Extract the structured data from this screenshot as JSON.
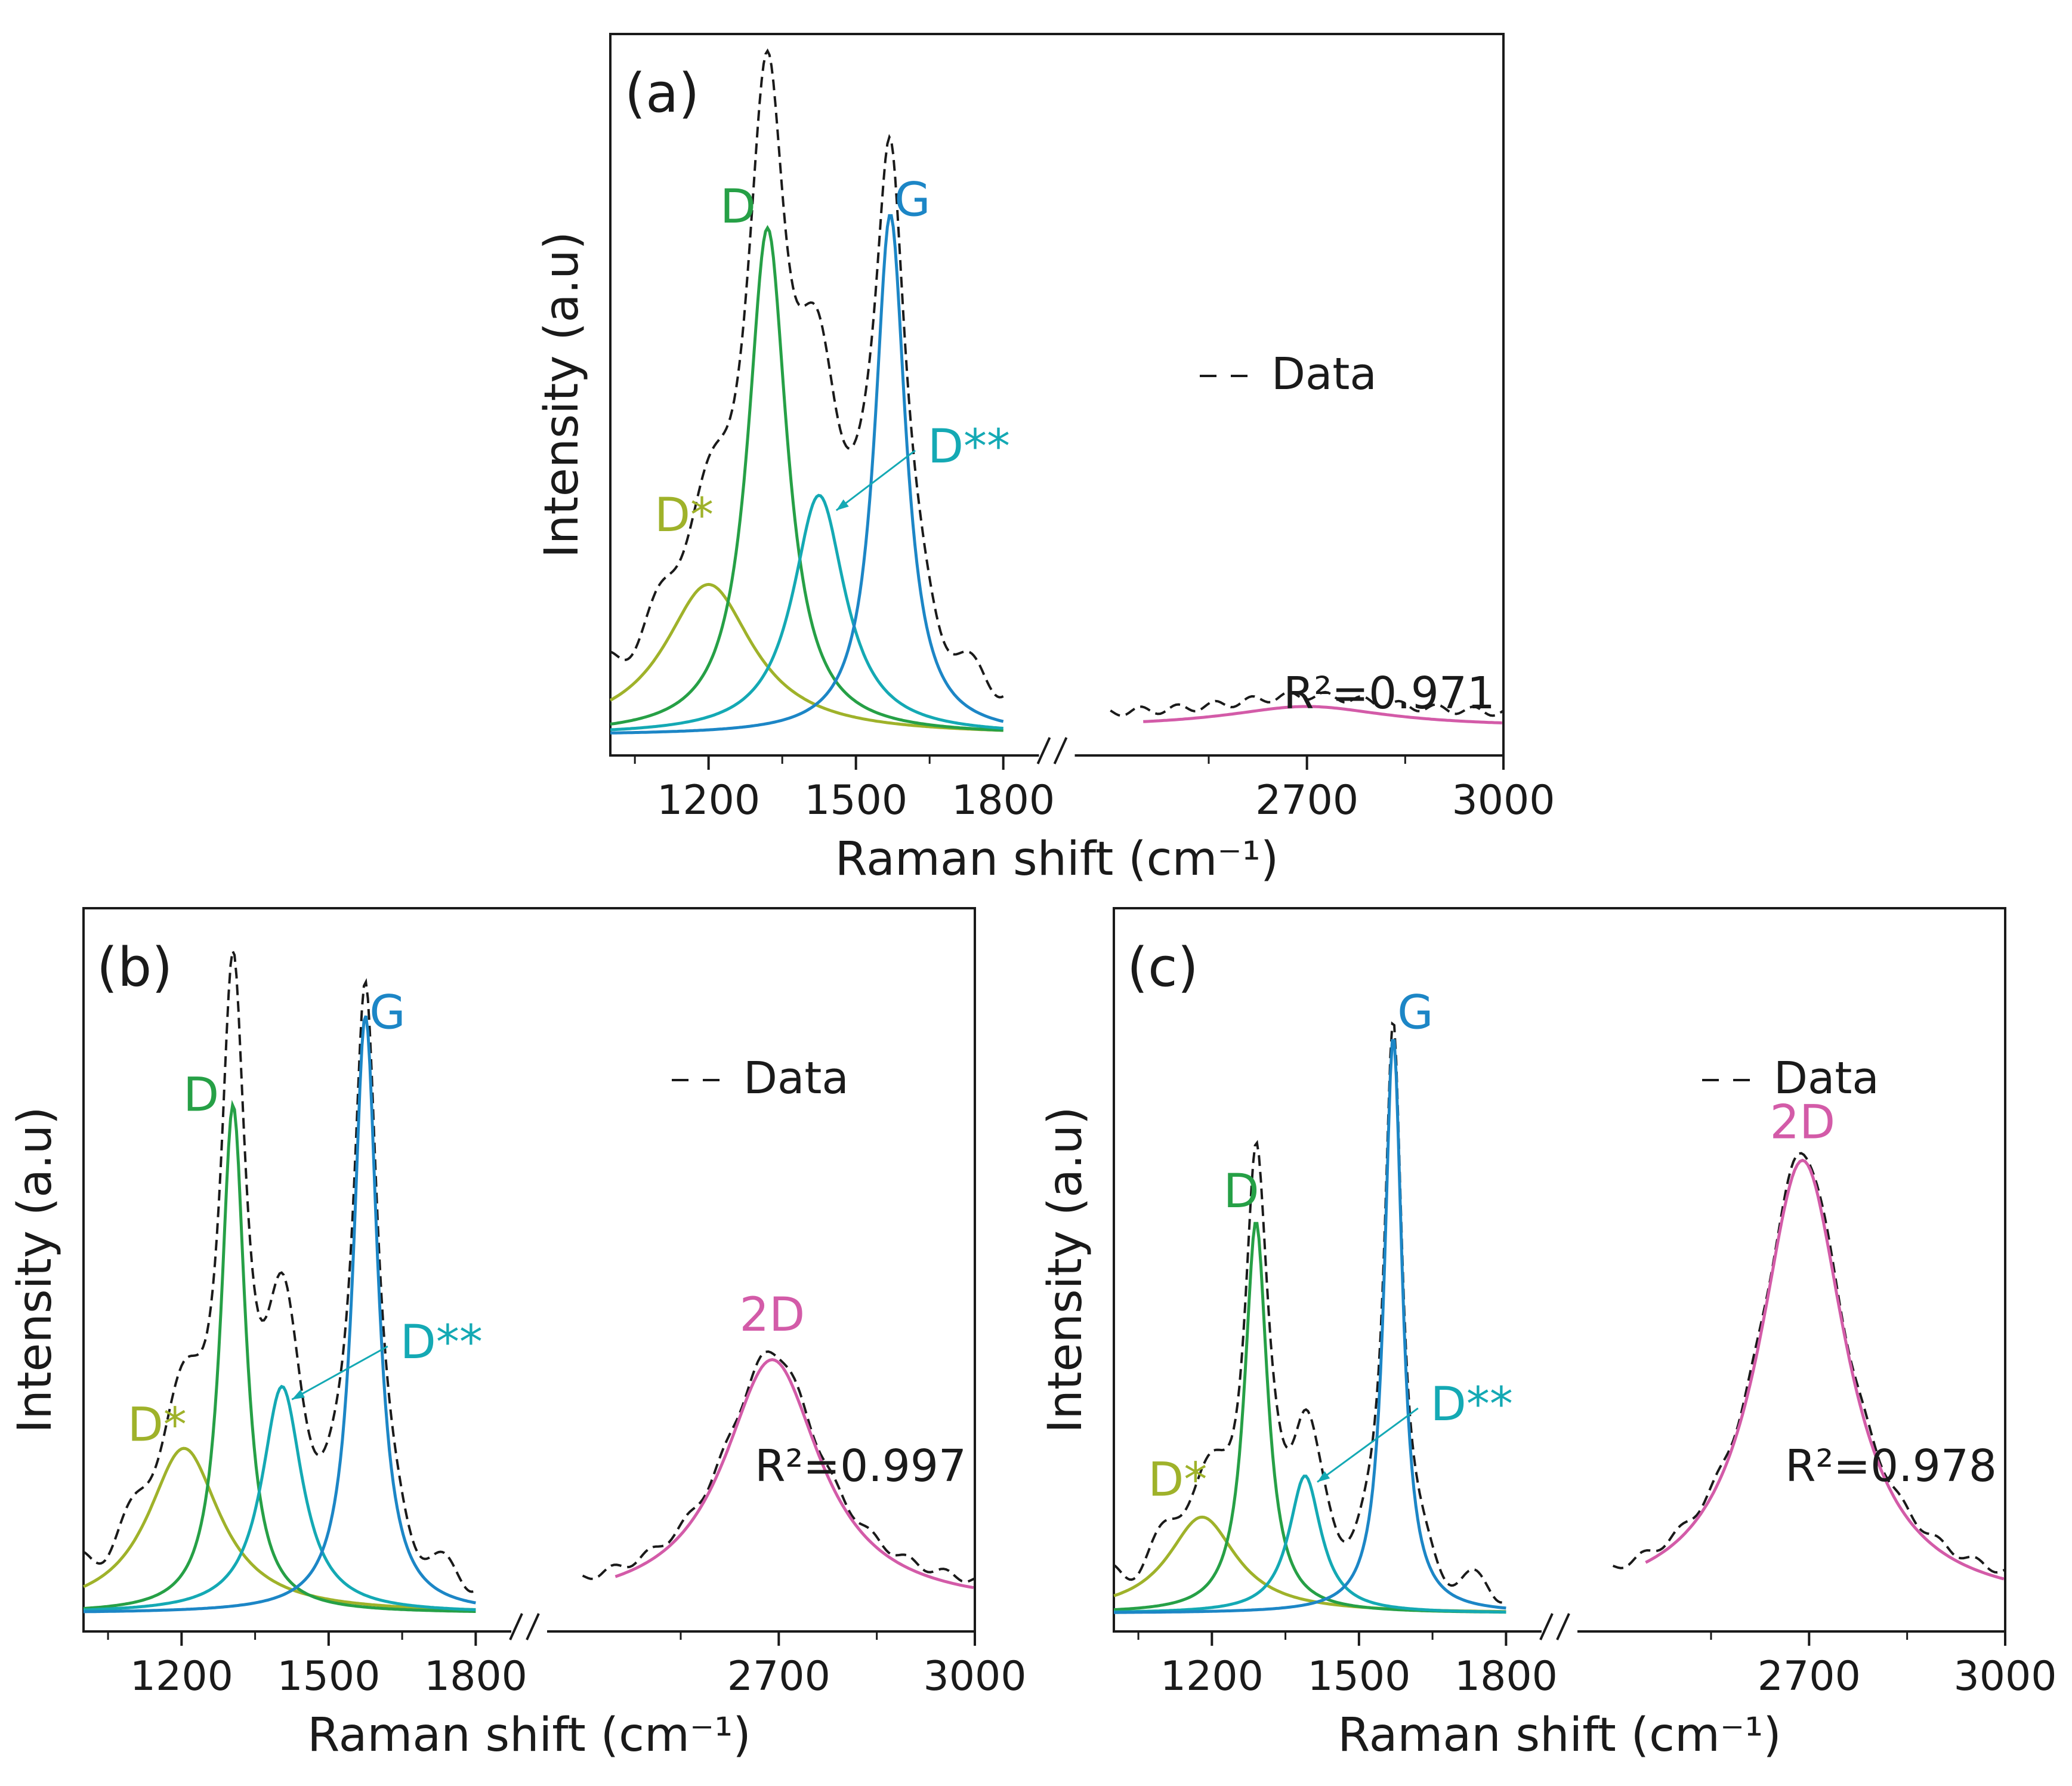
{
  "figure": {
    "x_axis_label": "Raman shift (cm⁻¹)",
    "y_axis_label": "Intensity (a.u)",
    "legend_label": "Data",
    "colors": {
      "data": "#1a1a1a",
      "D*": "#9fb22a",
      "D": "#26a046",
      "D**": "#14a9b4",
      "G": "#1c86c6",
      "2D": "#d35ba8",
      "axis": "#1a1a1a"
    }
  },
  "chart_data": [
    {
      "type": "line",
      "panel": "(a)",
      "r_squared": "R²=0.971",
      "x_break": [
        1800,
        2400
      ],
      "x_ticks": [
        "1200",
        "1500",
        "1800",
        "2700",
        "3000"
      ],
      "peaks": [
        {
          "name": "D*",
          "center": 1200,
          "height": 0.22,
          "width": 110
        },
        {
          "name": "D",
          "center": 1320,
          "height": 0.74,
          "width": 48
        },
        {
          "name": "D**",
          "center": 1425,
          "height": 0.35,
          "width": 65
        },
        {
          "name": "G",
          "center": 1570,
          "height": 0.76,
          "width": 38
        },
        {
          "name": "2D",
          "center": 2700,
          "height": 0.03,
          "width": 150
        }
      ],
      "baseline": 0.04,
      "data_dip_at_break": 0.01,
      "labels": {
        "D*": "D*",
        "D": "D",
        "D**": "D**",
        "G": "G",
        "2D": ""
      }
    },
    {
      "type": "line",
      "panel": "(b)",
      "r_squared": "R²=0.997",
      "x_break": [
        1800,
        2400
      ],
      "x_ticks": [
        "1200",
        "1500",
        "1800",
        "2700",
        "3000"
      ],
      "peaks": [
        {
          "name": "D*",
          "center": 1205,
          "height": 0.24,
          "width": 90
        },
        {
          "name": "D",
          "center": 1305,
          "height": 0.74,
          "width": 30
        },
        {
          "name": "D**",
          "center": 1405,
          "height": 0.33,
          "width": 50
        },
        {
          "name": "G",
          "center": 1575,
          "height": 0.87,
          "width": 30
        },
        {
          "name": "2D",
          "center": 2690,
          "height": 0.36,
          "width": 90
        }
      ],
      "baseline": 0.03,
      "data_dip_at_break": 0.01,
      "labels": {
        "D*": "D*",
        "D": "D",
        "D**": "D**",
        "G": "G",
        "2D": "2D"
      }
    },
    {
      "type": "line",
      "panel": "(c)",
      "r_squared": "R²=0.978",
      "x_break": [
        1800,
        2400
      ],
      "x_ticks": [
        "1200",
        "1500",
        "1800",
        "2700",
        "3000"
      ],
      "peaks": [
        {
          "name": "D*",
          "center": 1180,
          "height": 0.14,
          "width": 85
        },
        {
          "name": "D",
          "center": 1290,
          "height": 0.57,
          "width": 28
        },
        {
          "name": "D**",
          "center": 1390,
          "height": 0.2,
          "width": 40
        },
        {
          "name": "G",
          "center": 1570,
          "height": 0.84,
          "width": 22
        },
        {
          "name": "2D",
          "center": 2690,
          "height": 0.65,
          "width": 80
        }
      ],
      "baseline": 0.03,
      "data_dip_at_break": 0.01,
      "labels": {
        "D*": "D*",
        "D": "D",
        "D**": "D**",
        "G": "G",
        "2D": "2D"
      }
    }
  ]
}
